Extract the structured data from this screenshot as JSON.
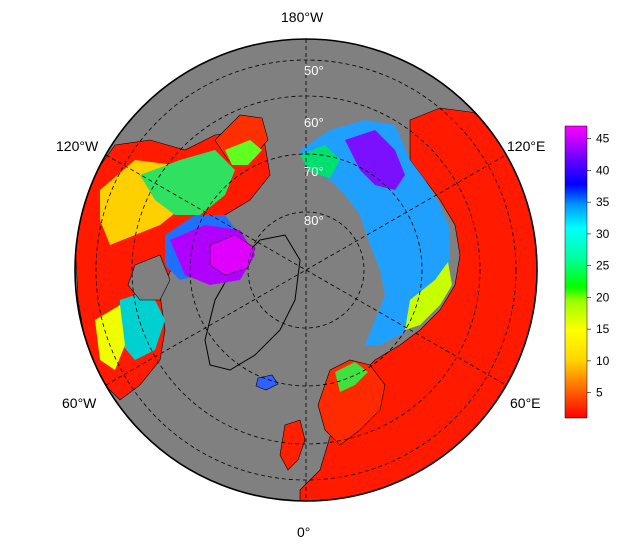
{
  "map": {
    "projection": "north polar stereographic",
    "ocean_color": "#808080",
    "land_edge_color": "#000000",
    "graticule_color": "#000000",
    "longitude_labels": {
      "top": "180°W",
      "upper_left": "120°W",
      "upper_right": "120°E",
      "lower_left": "60°W",
      "lower_right": "60°E",
      "bottom": "0°"
    },
    "latitude_labels": [
      "50°",
      "60°",
      "70°",
      "80°"
    ]
  },
  "colorbar": {
    "ticks": [
      "5",
      "10",
      "15",
      "20",
      "25",
      "30",
      "35",
      "40",
      "45"
    ],
    "range": [
      1,
      47
    ],
    "colors": [
      "#ff0000",
      "#ff6a00",
      "#ffd700",
      "#ffff00",
      "#9cff00",
      "#00ff00",
      "#00ffa0",
      "#00ffff",
      "#0096ff",
      "#0000ff",
      "#6000ff",
      "#b400ff",
      "#ff00ff"
    ]
  }
}
